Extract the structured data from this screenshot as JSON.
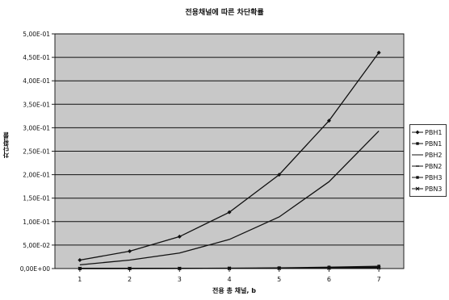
{
  "chart_data": {
    "type": "line",
    "title": "전용채널에 따른 차단확률",
    "xlabel": "전용 총 채널, b",
    "ylabel": "차단확률",
    "x": [
      1,
      2,
      3,
      4,
      5,
      6,
      7
    ],
    "ylim": [
      0,
      0.5
    ],
    "ytick_labels": [
      "0,00E+00",
      "5,00E-02",
      "1,00E-01",
      "1,50E-01",
      "2,00E-01",
      "2,50E-01",
      "3,00E-01",
      "3,50E-01",
      "4,00E-01",
      "4,50E-01",
      "5,00E-01"
    ],
    "xtick_labels": [
      "1",
      "2",
      "3",
      "4",
      "5",
      "6",
      "7"
    ],
    "grid": true,
    "legend_position": "right",
    "series": [
      {
        "name": "PBH1",
        "values": [
          0.018,
          0.037,
          0.068,
          0.12,
          0.2,
          0.315,
          0.46
        ]
      },
      {
        "name": "PBN1",
        "values": [
          0.0001,
          0.0002,
          0.0004,
          0.0008,
          0.0015,
          0.003,
          0.005
        ]
      },
      {
        "name": "PBH2",
        "values": [
          0.008,
          0.018,
          0.033,
          0.062,
          0.11,
          0.185,
          0.293
        ]
      },
      {
        "name": "PBN2",
        "values": [
          0.0001,
          0.0001,
          0.0002,
          0.0004,
          0.0008,
          0.0015,
          0.003
        ]
      },
      {
        "name": "PBH3",
        "values": [
          0.0001,
          0.0001,
          0.0002,
          0.0004,
          0.0008,
          0.0016,
          0.003
        ]
      },
      {
        "name": "PBN3",
        "values": [
          0.0001,
          0.0001,
          0.0001,
          0.0002,
          0.0004,
          0.0008,
          0.0015
        ]
      }
    ]
  },
  "style": {
    "plot_bg": "#c8c8c8",
    "grid_color": "#111111",
    "line_color": "#111111"
  }
}
